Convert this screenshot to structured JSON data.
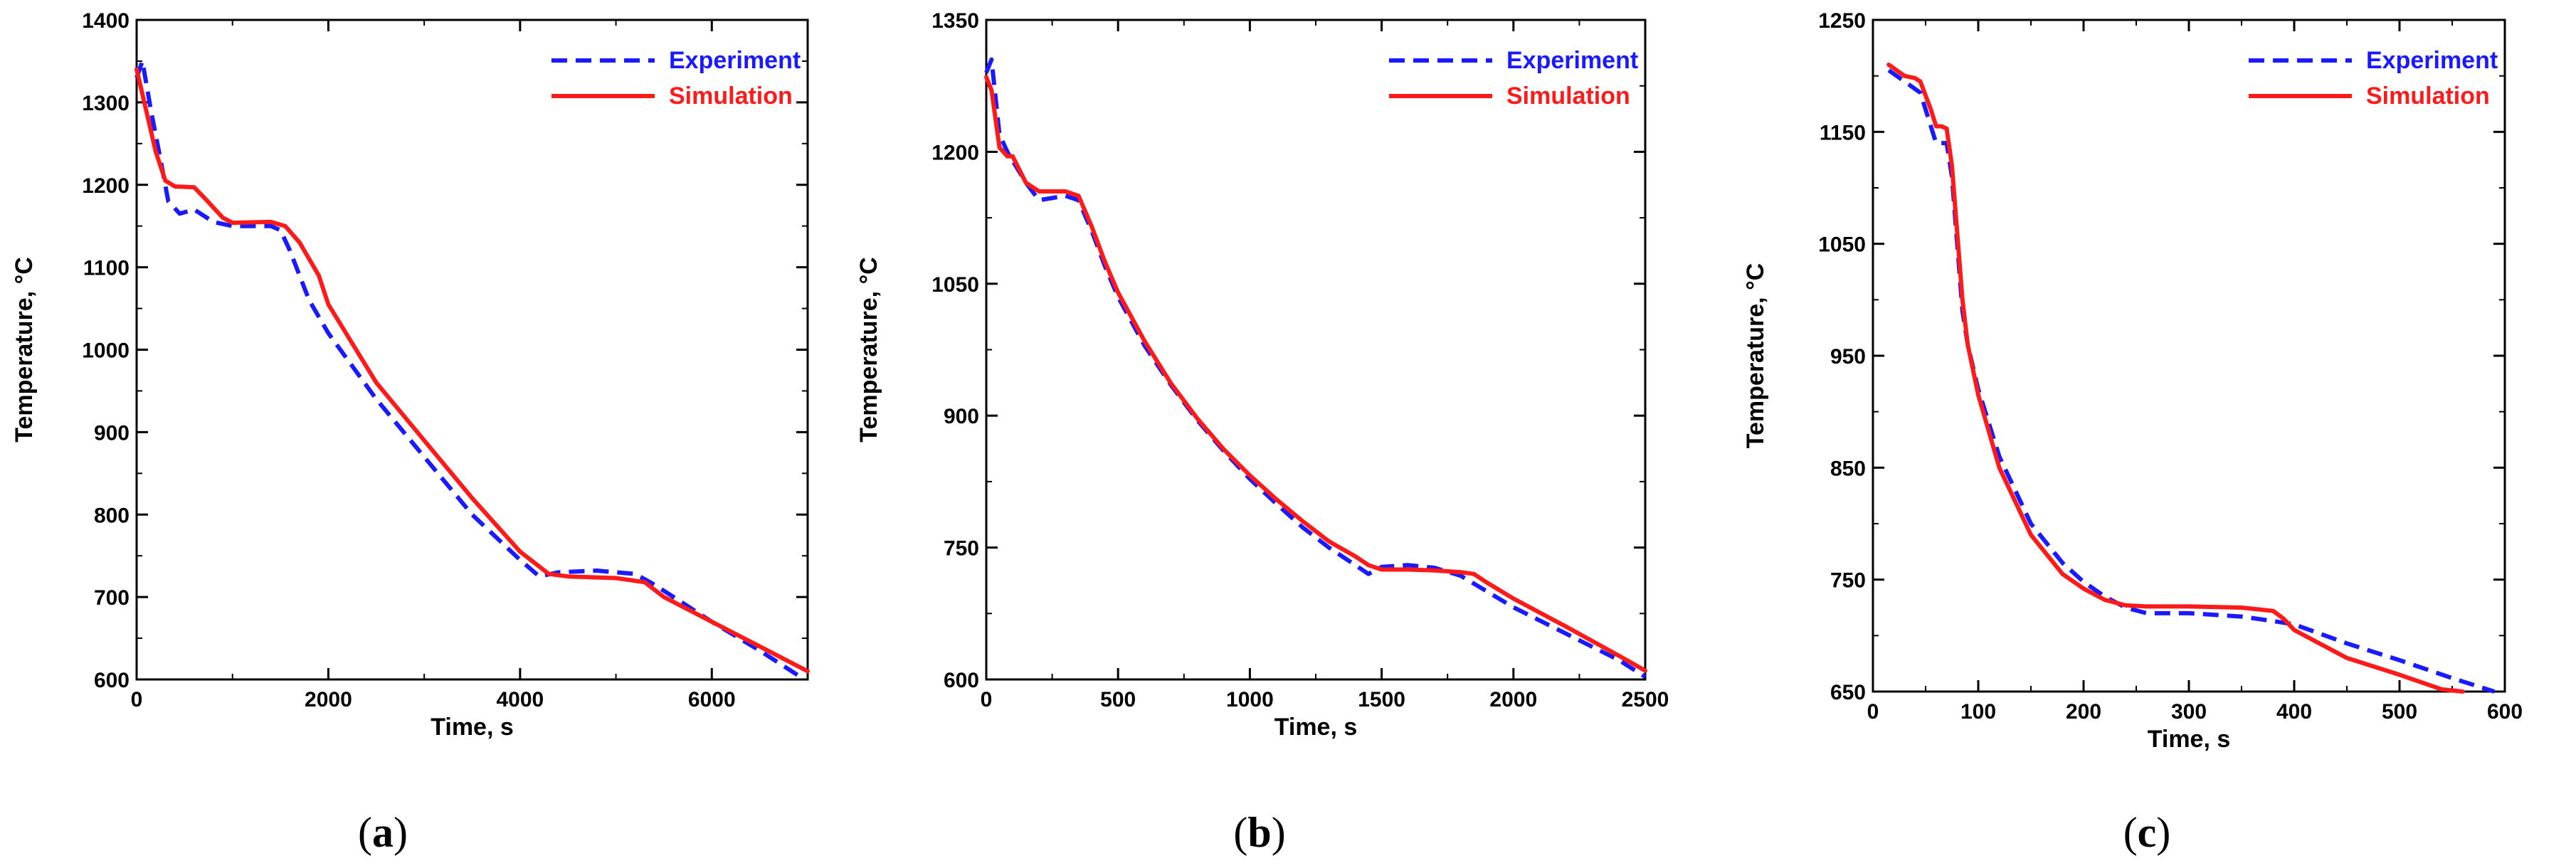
{
  "colors": {
    "experiment": "#1a1aff",
    "simulation": "#ff1a1a",
    "axis": "#000000"
  },
  "chart_data": [
    {
      "type": "line",
      "panel_prefix": "(",
      "panel_letter": "a",
      "panel_suffix": ")",
      "xlabel": "Time, s",
      "ylabel": "Temperature, °C",
      "xlim": [
        0,
        7000
      ],
      "ylim": [
        600,
        1400
      ],
      "xticks": [
        0,
        2000,
        4000,
        6000
      ],
      "yticks": [
        600,
        700,
        800,
        900,
        1000,
        1100,
        1200,
        1300,
        1400
      ],
      "xminor": 1000,
      "yminor": 50,
      "legend": [
        "Experiment",
        "Simulation"
      ],
      "series": [
        {
          "name": "Experiment",
          "x": [
            0,
            60,
            150,
            250,
            330,
            450,
            600,
            800,
            1000,
            1400,
            1500,
            1600,
            1800,
            2000,
            2500,
            3000,
            3500,
            4000,
            4200,
            4400,
            4800,
            5200,
            5400,
            6000,
            6500,
            6900
          ],
          "y": [
            1330,
            1350,
            1290,
            1230,
            1180,
            1165,
            1170,
            1155,
            1150,
            1150,
            1145,
            1120,
            1060,
            1020,
            940,
            870,
            800,
            745,
            725,
            730,
            732,
            728,
            715,
            670,
            635,
            605
          ]
        },
        {
          "name": "Simulation",
          "x": [
            0,
            100,
            200,
            300,
            400,
            600,
            700,
            900,
            1000,
            1400,
            1550,
            1700,
            1900,
            2000,
            2500,
            3000,
            3500,
            4000,
            4300,
            4500,
            5000,
            5300,
            5500,
            6000,
            6500,
            7000
          ],
          "y": [
            1340,
            1290,
            1240,
            1205,
            1198,
            1197,
            1185,
            1160,
            1154,
            1155,
            1150,
            1130,
            1090,
            1055,
            960,
            890,
            820,
            755,
            728,
            725,
            723,
            718,
            700,
            670,
            640,
            610
          ]
        }
      ]
    },
    {
      "type": "line",
      "panel_prefix": "(",
      "panel_letter": "b",
      "panel_suffix": ")",
      "xlabel": "Time, s",
      "ylabel": "Temperature, °C",
      "xlim": [
        0,
        2500
      ],
      "ylim": [
        600,
        1350
      ],
      "xticks": [
        0,
        500,
        1000,
        1500,
        2000,
        2500
      ],
      "yticks": [
        600,
        750,
        900,
        1050,
        1200,
        1350
      ],
      "xminor": 250,
      "yminor": 75,
      "legend": [
        "Experiment",
        "Simulation"
      ],
      "series": [
        {
          "name": "Experiment",
          "x": [
            0,
            20,
            50,
            80,
            100,
            150,
            200,
            300,
            350,
            400,
            450,
            500,
            600,
            700,
            800,
            900,
            1000,
            1100,
            1200,
            1300,
            1400,
            1450,
            1500,
            1600,
            1700,
            1800,
            1900,
            2000,
            2200,
            2400,
            2500
          ],
          "y": [
            1290,
            1305,
            1220,
            1200,
            1190,
            1165,
            1145,
            1150,
            1145,
            1110,
            1070,
            1035,
            980,
            935,
            895,
            860,
            828,
            800,
            773,
            750,
            730,
            720,
            728,
            730,
            727,
            718,
            700,
            682,
            652,
            622,
            603
          ]
        },
        {
          "name": "Simulation",
          "x": [
            0,
            20,
            50,
            80,
            100,
            150,
            200,
            300,
            350,
            400,
            450,
            500,
            600,
            700,
            800,
            900,
            1000,
            1100,
            1200,
            1300,
            1400,
            1450,
            1500,
            1600,
            1700,
            1800,
            1850,
            1900,
            2000,
            2200,
            2400,
            2500
          ],
          "y": [
            1285,
            1270,
            1205,
            1195,
            1195,
            1165,
            1155,
            1155,
            1150,
            1115,
            1075,
            1040,
            985,
            937,
            897,
            862,
            832,
            805,
            780,
            757,
            740,
            730,
            725,
            725,
            724,
            722,
            720,
            710,
            692,
            660,
            627,
            610
          ]
        }
      ]
    },
    {
      "type": "line",
      "panel_prefix": "(",
      "panel_letter": "c",
      "panel_suffix": ")",
      "xlabel": "Time, s",
      "ylabel": "Temperature, °C",
      "xlim": [
        0,
        600
      ],
      "ylim": [
        650,
        1250
      ],
      "xticks": [
        0,
        100,
        200,
        300,
        400,
        500,
        600
      ],
      "yticks": [
        650,
        750,
        850,
        950,
        1050,
        1150,
        1250
      ],
      "xminor": 50,
      "yminor": 50,
      "legend": [
        "Experiment",
        "Simulation"
      ],
      "series": [
        {
          "name": "Experiment",
          "x": [
            15,
            30,
            45,
            55,
            60,
            65,
            70,
            75,
            80,
            85,
            90,
            100,
            120,
            150,
            180,
            200,
            220,
            240,
            260,
            300,
            350,
            380,
            400,
            450,
            500,
            550,
            590
          ],
          "y": [
            1205,
            1195,
            1185,
            1155,
            1140,
            1140,
            1140,
            1110,
            1050,
            990,
            960,
            920,
            860,
            800,
            765,
            748,
            735,
            725,
            720,
            720,
            717,
            713,
            710,
            693,
            678,
            662,
            650
          ]
        },
        {
          "name": "Simulation",
          "x": [
            15,
            30,
            40,
            45,
            55,
            60,
            65,
            70,
            75,
            80,
            85,
            90,
            100,
            120,
            150,
            180,
            200,
            220,
            240,
            260,
            300,
            350,
            380,
            390,
            400,
            450,
            500,
            540,
            560
          ],
          "y": [
            1210,
            1200,
            1198,
            1195,
            1170,
            1155,
            1155,
            1153,
            1120,
            1060,
            1000,
            960,
            915,
            850,
            790,
            755,
            742,
            732,
            727,
            726,
            726,
            725,
            722,
            715,
            705,
            680,
            665,
            652,
            650
          ]
        }
      ]
    }
  ]
}
